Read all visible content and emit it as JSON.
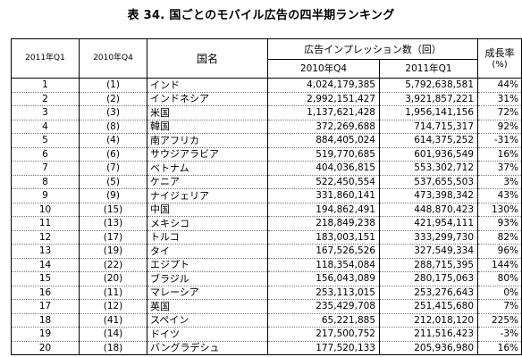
{
  "title": "表 34.  国ごとのモバイル広告の四半期ランキング",
  "headers": {
    "rank_2011q1": "2011年Q1",
    "rank_2010q4": "2010年Q4",
    "country": "国名",
    "impressions_group": "広告インプレッション数（回）",
    "impr_2010q4": "2010年Q4",
    "impr_2011q1": "2011年Q1",
    "growth_line1": "成長率",
    "growth_line2": "(%)"
  },
  "rows": [
    {
      "rank": "1",
      "prev": "(1)",
      "country": "インド",
      "q4": "4,024,179,385",
      "q1": "5,792,638,581",
      "growth": "44%"
    },
    {
      "rank": "2",
      "prev": "(2)",
      "country": "インドネシア",
      "q4": "2,992,151,427",
      "q1": "3,921,857,221",
      "growth": "31%"
    },
    {
      "rank": "3",
      "prev": "(3)",
      "country": "米国",
      "q4": "1,137,621,428",
      "q1": "1,956,141,156",
      "growth": "72%"
    },
    {
      "rank": "4",
      "prev": "(8)",
      "country": "韓国",
      "q4": "372,269,688",
      "q1": "714,715,317",
      "growth": "92%"
    },
    {
      "rank": "5",
      "prev": "(4)",
      "country": "南アフリカ",
      "q4": "884,405,024",
      "q1": "614,375,252",
      "growth": "-31%"
    },
    {
      "rank": "6",
      "prev": "(6)",
      "country": "サウジアラビア",
      "q4": "519,770,685",
      "q1": "601,936,549",
      "growth": "16%"
    },
    {
      "rank": "7",
      "prev": "(7)",
      "country": "ベトナム",
      "q4": "404,036,815",
      "q1": "553,302,712",
      "growth": "37%"
    },
    {
      "rank": "8",
      "prev": "(5)",
      "country": "ケニア",
      "q4": "522,450,554",
      "q1": "537,655,503",
      "growth": "3%"
    },
    {
      "rank": "9",
      "prev": "(9)",
      "country": "ナイジェリア",
      "q4": "331,860,141",
      "q1": "473,398,342",
      "growth": "43%"
    },
    {
      "rank": "10",
      "prev": "(15)",
      "country": "中国",
      "q4": "194,862,491",
      "q1": "448,870,423",
      "growth": "130%"
    },
    {
      "rank": "11",
      "prev": "(13)",
      "country": "メキシコ",
      "q4": "218,849,238",
      "q1": "421,954,111",
      "growth": "93%"
    },
    {
      "rank": "12",
      "prev": "(17)",
      "country": "トルコ",
      "q4": "183,003,151",
      "q1": "333,299,730",
      "growth": "82%"
    },
    {
      "rank": "13",
      "prev": "(19)",
      "country": "タイ",
      "q4": "167,526,526",
      "q1": "327,549,334",
      "growth": "96%"
    },
    {
      "rank": "14",
      "prev": "(22)",
      "country": "エジプト",
      "q4": "118,354,084",
      "q1": "288,715,395",
      "growth": "144%"
    },
    {
      "rank": "15",
      "prev": "(20)",
      "country": "ブラジル",
      "q4": "156,043,089",
      "q1": "280,175,063",
      "growth": "80%"
    },
    {
      "rank": "16",
      "prev": "(11)",
      "country": "マレーシア",
      "q4": "253,113,015",
      "q1": "253,276,643",
      "growth": "0%"
    },
    {
      "rank": "17",
      "prev": "(12)",
      "country": "英国",
      "q4": "235,429,708",
      "q1": "251,415,680",
      "growth": "7%"
    },
    {
      "rank": "18",
      "prev": "(41)",
      "country": "スペイン",
      "q4": "65,221,885",
      "q1": "212,018,120",
      "growth": "225%"
    },
    {
      "rank": "19",
      "prev": "(14)",
      "country": "ドイツ",
      "q4": "217,500,752",
      "q1": "211,516,423",
      "growth": "-3%"
    },
    {
      "rank": "20",
      "prev": "(18)",
      "country": "バングラデシュ",
      "q4": "177,520,133",
      "q1": "205,936,980",
      "growth": "16%"
    }
  ]
}
